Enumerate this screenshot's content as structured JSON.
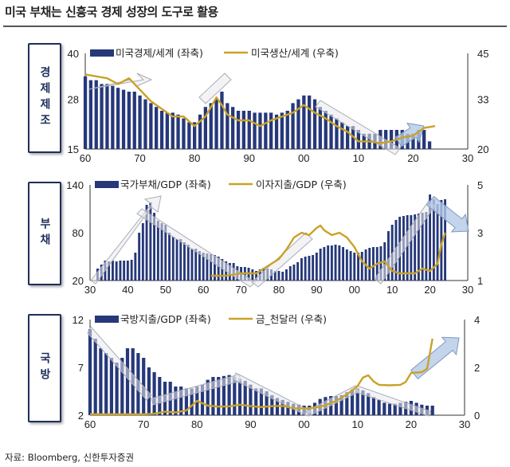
{
  "title": "미국 부채는 신흥국 경제 성장의 도구로 활용",
  "source": "자료: Bloomberg, 신한투자증권",
  "colors": {
    "bar": "#26387a",
    "line": "#c9a227",
    "arrow_fill": "#e9e9ec",
    "arrow_stroke": "#a9adb8",
    "arrow_blue": "#b4c9e6",
    "side_box": "#1f2e5a"
  },
  "panel_labels": [
    "경제제조",
    "부채",
    "국방"
  ],
  "chart_data": [
    {
      "type": "bar+line",
      "panel_label": "경제제조",
      "x_ticks": [
        "60",
        "70",
        "80",
        "90",
        "00",
        "10",
        "20",
        "30"
      ],
      "y_left": {
        "ticks": [
          "15",
          "28",
          "40"
        ],
        "range": [
          15,
          40
        ]
      },
      "y_right": {
        "ticks": [
          "20",
          "33",
          "45"
        ],
        "range": [
          20,
          45
        ]
      },
      "legend": [
        "미국경제/세계 (좌축)",
        "미국생산/세계 (우축)"
      ],
      "series": [
        {
          "name": "미국경제/세계 (좌축)",
          "axis": "left",
          "kind": "bar",
          "x": [
            1960,
            1961,
            1962,
            1963,
            1964,
            1965,
            1966,
            1967,
            1968,
            1969,
            1970,
            1971,
            1972,
            1973,
            1974,
            1975,
            1976,
            1977,
            1978,
            1979,
            1980,
            1981,
            1982,
            1983,
            1984,
            1985,
            1986,
            1987,
            1988,
            1989,
            1990,
            1991,
            1992,
            1993,
            1994,
            1995,
            1996,
            1997,
            1998,
            1999,
            2000,
            2001,
            2002,
            2003,
            2004,
            2005,
            2006,
            2007,
            2008,
            2009,
            2010,
            2011,
            2012,
            2013,
            2014,
            2015,
            2016,
            2017,
            2018,
            2019,
            2020,
            2021,
            2022,
            2023
          ],
          "values": [
            34,
            33,
            33,
            32,
            32,
            31.5,
            31,
            30.5,
            30,
            30,
            29,
            28,
            27,
            26,
            25,
            24.5,
            24.5,
            24,
            23,
            22,
            22,
            24,
            26,
            27,
            28,
            30,
            27,
            26,
            25,
            25,
            25,
            24.5,
            24.5,
            24.5,
            24.5,
            24,
            24.5,
            25,
            27,
            28,
            29,
            29,
            28,
            26,
            25,
            24,
            23,
            22,
            21,
            21,
            20,
            19,
            19,
            19,
            20,
            20,
            20,
            20,
            20,
            19,
            19,
            20,
            20,
            17
          ]
        },
        {
          "name": "미국생산/세계 (우축)",
          "axis": "right",
          "kind": "line",
          "x": [
            1960,
            1962,
            1964,
            1966,
            1968,
            1970,
            1972,
            1974,
            1976,
            1978,
            1980,
            1982,
            1984,
            1985,
            1986,
            1988,
            1990,
            1992,
            1994,
            1996,
            1998,
            2000,
            2002,
            2004,
            2006,
            2008,
            2010,
            2012,
            2014,
            2016,
            2018,
            2020,
            2022,
            2024
          ],
          "values": [
            39.5,
            39,
            38.5,
            37,
            38.5,
            35.5,
            32.5,
            30.5,
            28.5,
            28.5,
            26,
            28.5,
            33.5,
            31.5,
            29,
            27.5,
            27.5,
            26,
            27.5,
            28.5,
            29.5,
            31.5,
            29.5,
            28,
            26,
            24.5,
            22,
            22,
            21.5,
            22,
            23,
            23.5,
            25.5,
            26
          ]
        }
      ]
    },
    {
      "type": "bar+line",
      "panel_label": "부채",
      "x_ticks": [
        "30",
        "40",
        "50",
        "60",
        "70",
        "80",
        "90",
        "00",
        "10",
        "20",
        "30"
      ],
      "y_left": {
        "ticks": [
          "20",
          "80",
          "140"
        ],
        "range": [
          20,
          140
        ]
      },
      "y_right": {
        "ticks": [
          "1",
          "3",
          "5"
        ],
        "range": [
          1,
          5
        ]
      },
      "legend": [
        "국가부채/GDP (좌축)",
        "이자지출/GDP (우축)"
      ],
      "series": [
        {
          "name": "국가부채/GDP (좌축)",
          "axis": "left",
          "kind": "bar",
          "x": [
            1932,
            1933,
            1934,
            1935,
            1936,
            1937,
            1938,
            1939,
            1940,
            1941,
            1942,
            1943,
            1944,
            1945,
            1946,
            1947,
            1948,
            1949,
            1950,
            1951,
            1952,
            1953,
            1954,
            1955,
            1956,
            1957,
            1958,
            1959,
            1960,
            1961,
            1962,
            1963,
            1964,
            1965,
            1966,
            1967,
            1968,
            1969,
            1970,
            1971,
            1972,
            1973,
            1974,
            1975,
            1976,
            1977,
            1978,
            1979,
            1980,
            1981,
            1982,
            1983,
            1984,
            1985,
            1986,
            1987,
            1988,
            1989,
            1990,
            1991,
            1992,
            1993,
            1994,
            1995,
            1996,
            1997,
            1998,
            1999,
            2000,
            2001,
            2002,
            2003,
            2004,
            2005,
            2006,
            2007,
            2008,
            2009,
            2010,
            2011,
            2012,
            2013,
            2014,
            2015,
            2016,
            2017,
            2018,
            2019,
            2020,
            2021,
            2022,
            2023,
            2024
          ],
          "values": [
            35,
            40,
            45,
            44,
            45,
            44,
            45,
            45,
            45,
            46,
            55,
            80,
            92,
            115,
            118,
            105,
            95,
            92,
            90,
            80,
            75,
            72,
            72,
            68,
            65,
            60,
            60,
            57,
            55,
            54,
            53,
            52,
            50,
            47,
            44,
            42,
            42,
            38,
            37,
            37,
            36,
            34,
            32,
            34,
            36,
            35,
            34,
            32,
            32,
            31,
            34,
            38,
            40,
            43,
            48,
            50,
            51,
            52,
            55,
            60,
            62,
            64,
            64,
            65,
            64,
            62,
            59,
            57,
            55,
            55,
            56,
            59,
            61,
            62,
            62,
            63,
            68,
            82,
            90,
            96,
            100,
            101,
            102,
            102,
            103,
            104,
            105,
            106,
            128,
            122,
            116,
            121,
            122
          ]
        },
        {
          "name": "이자지출/GDP (우축)",
          "axis": "right",
          "kind": "line",
          "x": [
            1962,
            1966,
            1970,
            1974,
            1976,
            1978,
            1980,
            1982,
            1984,
            1986,
            1988,
            1990,
            1991,
            1992,
            1994,
            1996,
            1998,
            2000,
            2002,
            2004,
            2006,
            2008,
            2010,
            2012,
            2014,
            2016,
            2018,
            2020,
            2022,
            2023,
            2024
          ],
          "values": [
            1.2,
            1.2,
            1.3,
            1.3,
            1.5,
            1.7,
            1.9,
            2.3,
            2.8,
            3.0,
            2.9,
            3.2,
            3.3,
            3.1,
            2.9,
            3.0,
            2.8,
            2.4,
            1.8,
            1.5,
            1.7,
            1.8,
            1.4,
            1.3,
            1.3,
            1.3,
            1.5,
            1.4,
            1.7,
            2.5,
            3.0
          ]
        }
      ]
    },
    {
      "type": "bar+line",
      "panel_label": "국방",
      "x_ticks": [
        "60",
        "70",
        "80",
        "90",
        "00",
        "10",
        "20",
        "30"
      ],
      "y_left": {
        "ticks": [
          "2",
          "7",
          "12"
        ],
        "range": [
          2,
          12
        ]
      },
      "y_right": {
        "ticks": [
          "0",
          "2",
          "4"
        ],
        "range": [
          0,
          4
        ]
      },
      "legend": [
        "국방지출/GDP (좌축)",
        "금_천달러 (우축)"
      ],
      "series": [
        {
          "name": "국방지출/GDP (좌축)",
          "axis": "left",
          "kind": "bar",
          "x": [
            1960,
            1961,
            1962,
            1963,
            1964,
            1965,
            1966,
            1967,
            1968,
            1969,
            1970,
            1971,
            1972,
            1973,
            1974,
            1975,
            1976,
            1977,
            1978,
            1979,
            1980,
            1981,
            1982,
            1983,
            1984,
            1985,
            1986,
            1987,
            1988,
            1989,
            1990,
            1991,
            1992,
            1993,
            1994,
            1995,
            1996,
            1997,
            1998,
            1999,
            2000,
            2001,
            2002,
            2003,
            2004,
            2005,
            2006,
            2007,
            2008,
            2009,
            2010,
            2011,
            2012,
            2013,
            2014,
            2015,
            2016,
            2017,
            2018,
            2019,
            2020,
            2021,
            2022,
            2023,
            2024
          ],
          "values": [
            11,
            10,
            9,
            8.5,
            8,
            7.5,
            8,
            9,
            9,
            8.5,
            8,
            7,
            6.5,
            6,
            5.5,
            5.5,
            5,
            5,
            4.8,
            4.8,
            5,
            5.2,
            5.7,
            6,
            6,
            6.1,
            6.2,
            6,
            5.8,
            5.6,
            5.2,
            4.8,
            4.8,
            4.5,
            4.1,
            3.8,
            3.6,
            3.4,
            3.2,
            3.1,
            3,
            3,
            3.3,
            3.7,
            3.9,
            4,
            4,
            4.1,
            4.4,
            4.7,
            4.8,
            4.6,
            4.3,
            3.9,
            3.6,
            3.3,
            3.2,
            3.2,
            3.3,
            3.4,
            3.5,
            3.3,
            3.1,
            3,
            3
          ]
        },
        {
          "name": "금_천달러 (우축)",
          "axis": "right",
          "kind": "line",
          "x": [
            1960,
            1965,
            1970,
            1972,
            1974,
            1976,
            1978,
            1980,
            1982,
            1984,
            1986,
            1988,
            1990,
            1992,
            1994,
            1996,
            1998,
            2000,
            2002,
            2004,
            2006,
            2008,
            2010,
            2011,
            2012,
            2013,
            2014,
            2016,
            2018,
            2019,
            2020,
            2022,
            2023,
            2024
          ],
          "values": [
            0.04,
            0.04,
            0.04,
            0.06,
            0.15,
            0.12,
            0.2,
            0.6,
            0.4,
            0.36,
            0.37,
            0.44,
            0.38,
            0.34,
            0.38,
            0.39,
            0.29,
            0.28,
            0.31,
            0.41,
            0.6,
            0.87,
            1.22,
            1.57,
            1.67,
            1.41,
            1.27,
            1.25,
            1.27,
            1.39,
            1.77,
            1.8,
            1.94,
            3.2
          ]
        }
      ]
    }
  ]
}
